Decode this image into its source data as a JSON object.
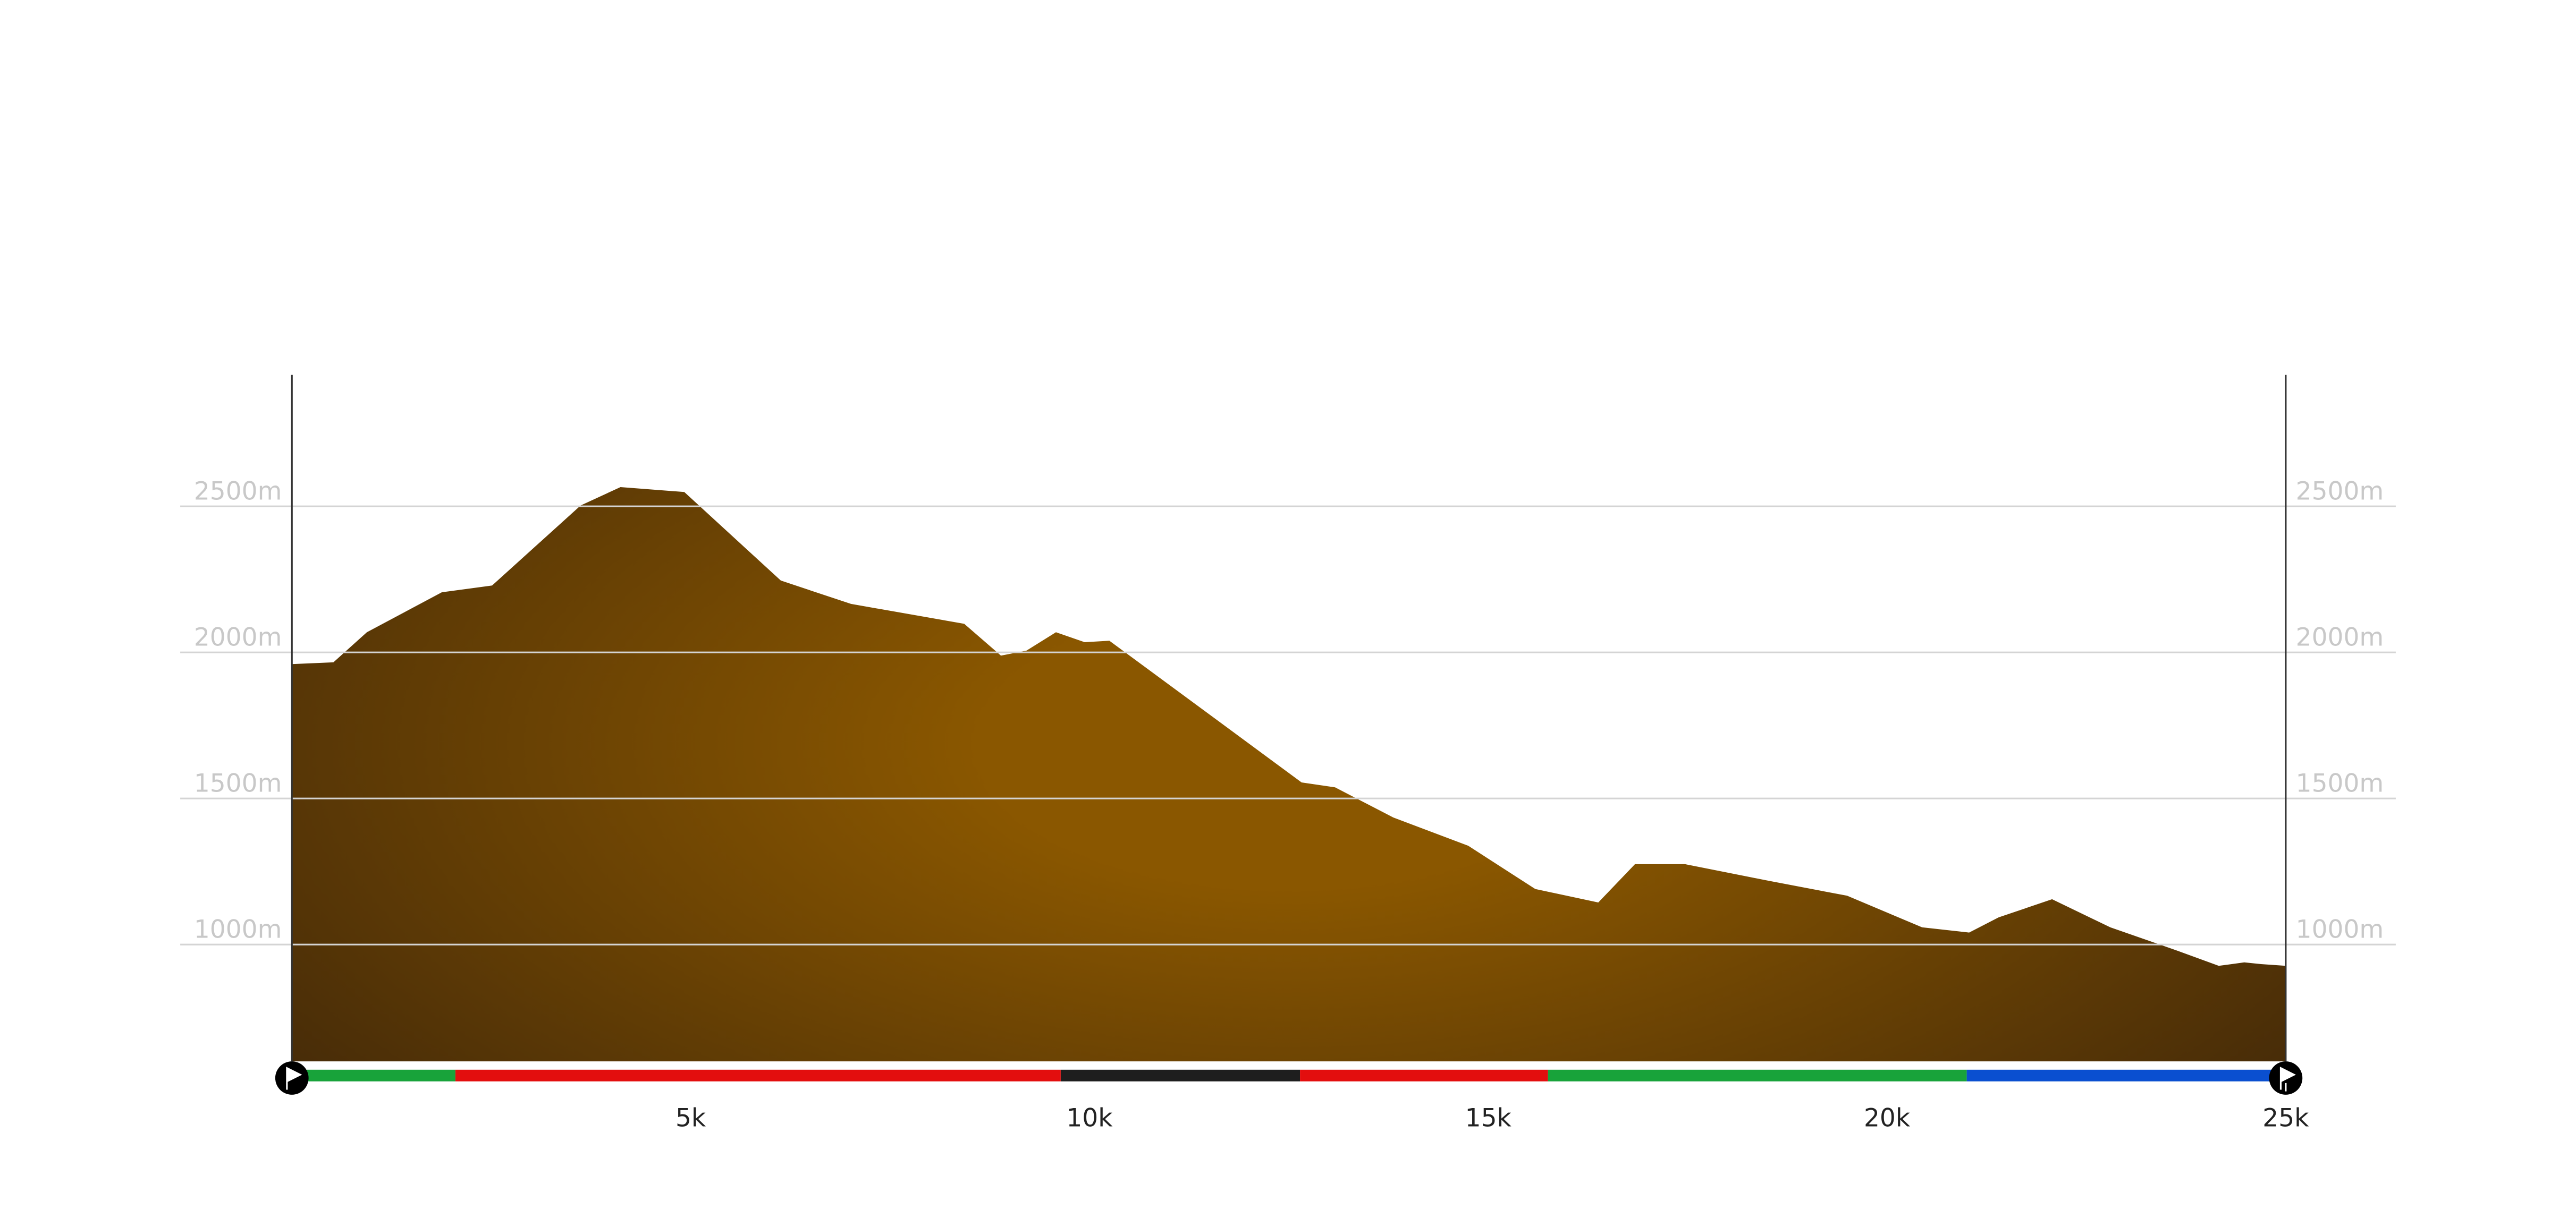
{
  "chart_data": {
    "type": "area",
    "x": [
      0,
      0.52,
      0.94,
      1.88,
      2.51,
      3.62,
      4.12,
      4.92,
      6.13,
      7.01,
      8.43,
      8.89,
      9.21,
      9.58,
      9.94,
      10.25,
      12.66,
      13.08,
      13.81,
      14.75,
      15.59,
      16.38,
      16.84,
      17.47,
      18.52,
      19.5,
      20.44,
      21.03,
      21.4,
      22.07,
      22.8,
      23.64,
      24.16,
      24.48,
      24.69,
      25.0
    ],
    "values": [
      1960,
      1966,
      2069,
      2206,
      2229,
      2503,
      2566,
      2549,
      2246,
      2166,
      2098,
      1989,
      2006,
      2069,
      2035,
      2040,
      1555,
      1538,
      1435,
      1338,
      1190,
      1144,
      1275,
      1275,
      1218,
      1167,
      1059,
      1041,
      1093,
      1155,
      1059,
      979,
      927,
      939,
      933,
      927
    ],
    "color": "#8a5700",
    "xlim": [
      0,
      25
    ],
    "ylim": [
      600,
      2950
    ],
    "xticks": [
      {
        "value": 5,
        "label": "5k"
      },
      {
        "value": 10,
        "label": "10k"
      },
      {
        "value": 15,
        "label": "15k"
      },
      {
        "value": 20,
        "label": "20k"
      },
      {
        "value": 25,
        "label": "25k"
      }
    ],
    "yticks": [
      {
        "value": 1000,
        "label": "1000m"
      },
      {
        "value": 1500,
        "label": "1500m"
      },
      {
        "value": 2000,
        "label": "2000m"
      },
      {
        "value": 2500,
        "label": "2500m"
      }
    ],
    "grid": true,
    "segments": [
      {
        "start": 0,
        "end": 2.05,
        "color": "#18a33a"
      },
      {
        "start": 2.05,
        "end": 9.64,
        "color": "#e30e0e"
      },
      {
        "start": 9.64,
        "end": 12.64,
        "color": "#1e1e1e"
      },
      {
        "start": 12.64,
        "end": 15.75,
        "color": "#e30e0e"
      },
      {
        "start": 15.75,
        "end": 21.0,
        "color": "#18a33a"
      },
      {
        "start": 21.0,
        "end": 25.0,
        "color": "#0a4fd0"
      }
    ]
  }
}
